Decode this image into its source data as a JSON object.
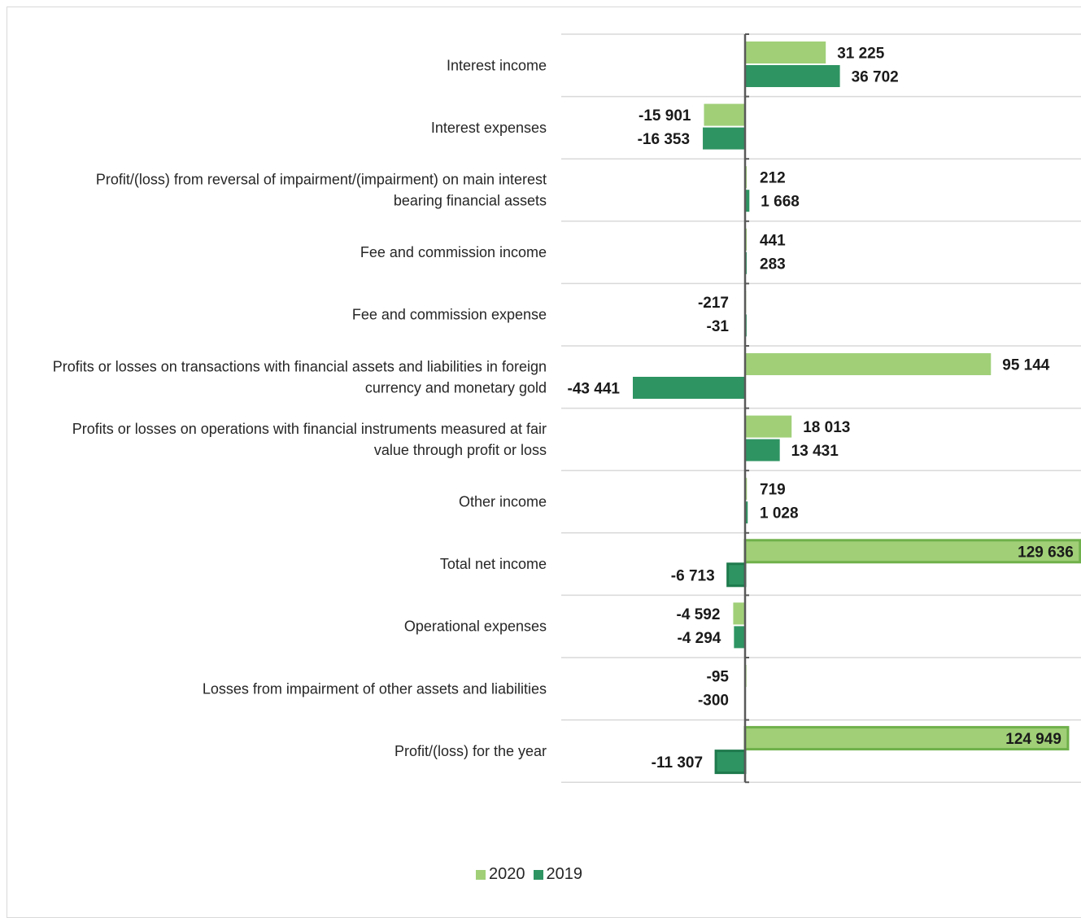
{
  "chart_data": {
    "type": "bar",
    "orientation": "horizontal",
    "categories": [
      "Interest income",
      "Interest expenses",
      "Profit/(loss) from reversal of impairment/(impairment) on main interest|bearing financial assets",
      "Fee and commission income",
      "Fee and commission expense",
      "Profits or losses on transactions with financial assets and liabilities in foreign|currency and monetary gold",
      "Profits or losses on operations with financial instruments measured at fair|value through profit or loss",
      "Other income",
      "Total net income",
      "Operational expenses",
      "Losses from impairment of other assets and liabilities",
      "Profit/(loss) for the year"
    ],
    "series": [
      {
        "name": "2020",
        "color": "#a0cf78",
        "values": [
          31225,
          -15901,
          212,
          441,
          -217,
          95144,
          18013,
          719,
          129636,
          -4592,
          -95,
          124949
        ],
        "labels": [
          "31 225",
          "-15 901",
          "212",
          "441",
          "-217",
          "95 144",
          "18 013",
          "719",
          "129 636",
          "-4 592",
          "-95",
          "124 949"
        ]
      },
      {
        "name": "2019",
        "color": "#2e9462",
        "values": [
          36702,
          -16353,
          1668,
          283,
          -31,
          -43441,
          13431,
          1028,
          -6713,
          -4294,
          -300,
          -11307
        ],
        "labels": [
          "36 702",
          "-16 353",
          "1 668",
          "283",
          "-31",
          "-43 441",
          "13 431",
          "1 028",
          "-6 713",
          "-4 294",
          "-300",
          "-11 307"
        ]
      }
    ],
    "xlim": [
      -72000,
      130000
    ],
    "grid": true,
    "legend_position": "bottom"
  }
}
